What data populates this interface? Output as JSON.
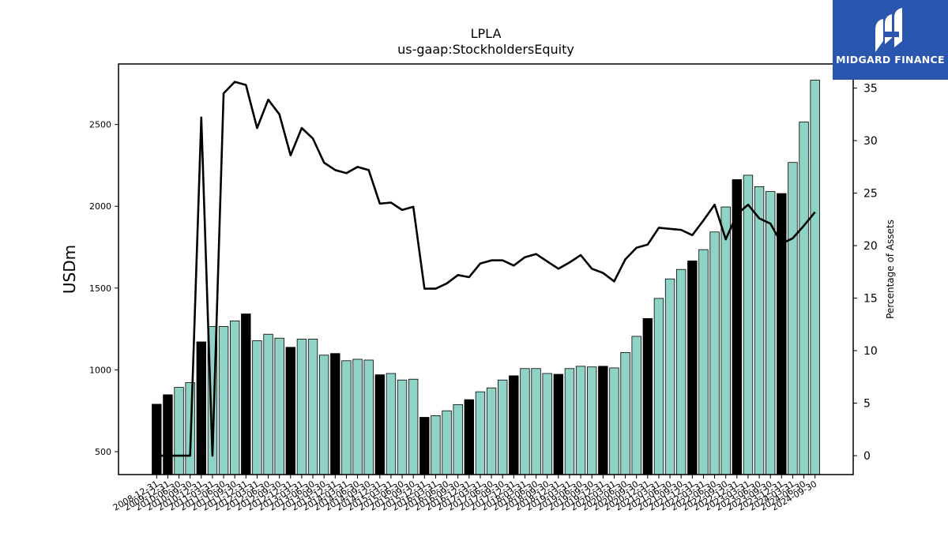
{
  "brand": {
    "logo_text": "MIDGARD FINANCE",
    "logo_color": "#2b56b0"
  },
  "colors": {
    "bar_teal": "#8fd3c6",
    "bar_black": "#000000",
    "line": "#000000"
  },
  "chart_data": {
    "type": "bar",
    "title": "LPLA",
    "subtitle": "us-gaap:StockholdersEquity",
    "ylabel": "USDm",
    "y2label": "Percentage of Assets",
    "ylim": [
      360,
      2870
    ],
    "y2lim": [
      -1.8,
      37.3
    ],
    "yticks": [
      500,
      1000,
      1500,
      2000,
      2500
    ],
    "y2ticks": [
      0,
      5,
      10,
      15,
      20,
      25,
      30,
      35
    ],
    "x_tick_labels": [
      "2008-12-31",
      "2009-12-31",
      "2010-06-30",
      "2010-09-30",
      "2010-12-31",
      "2011-03-31",
      "2011-06-30",
      "2011-09-30",
      "2011-12-31",
      "2012-03-31",
      "2012-06-30",
      "2012-09-30",
      "2012-12-31",
      "2013-03-31",
      "2013-06-30",
      "2013-09-30",
      "2013-12-31",
      "2014-03-31",
      "2014-06-30",
      "2014-09-30",
      "2014-12-31",
      "2015-03-31",
      "2015-06-30",
      "2015-09-30",
      "2015-12-31",
      "2016-03-31",
      "2016-06-30",
      "2016-09-30",
      "2016-12-31",
      "2017-03-31",
      "2017-06-30",
      "2017-09-30",
      "2017-12-31",
      "2018-03-31",
      "2018-06-30",
      "2018-09-30",
      "2018-12-31",
      "2019-03-31",
      "2019-06-30",
      "2019-09-30",
      "2019-12-31",
      "2020-03-31",
      "2020-06-30",
      "2020-09-30",
      "2020-12-31",
      "2021-03-31",
      "2021-06-30",
      "2021-09-30",
      "2021-12-31",
      "2022-03-31",
      "2022-06-30",
      "2022-09-30",
      "2022-12-31",
      "2023-03-31",
      "2023-06-30",
      "2023-09-30",
      "2023-12-31",
      "2024-03-31",
      "2024-06-30",
      "2024-09-30"
    ],
    "series": [
      {
        "values": [
          790,
          848,
          893,
          922,
          1171,
          1265,
          1265,
          1299,
          1342,
          1178,
          1218,
          1194,
          1138,
          1188,
          1188,
          1090,
          1100,
          1056,
          1065,
          1060,
          970,
          978,
          938,
          943,
          710,
          720,
          750,
          788,
          818,
          866,
          890,
          938,
          964,
          1008,
          1008,
          978,
          973,
          1008,
          1022,
          1018,
          1022,
          1012,
          1106,
          1205,
          1314,
          1437,
          1556,
          1614,
          1666,
          1735,
          1843,
          1996,
          2163,
          2190,
          2120,
          2090,
          2078,
          2268,
          2515,
          2771
        ],
        "highlight": [
          true,
          true,
          false,
          false,
          true,
          false,
          false,
          false,
          true,
          false,
          false,
          false,
          true,
          false,
          false,
          false,
          true,
          false,
          false,
          false,
          true,
          false,
          false,
          false,
          true,
          false,
          false,
          false,
          true,
          false,
          false,
          false,
          true,
          false,
          false,
          false,
          true,
          false,
          false,
          false,
          true,
          false,
          false,
          false,
          true,
          false,
          false,
          false,
          true,
          false,
          false,
          false,
          true,
          false,
          false,
          false,
          true,
          false,
          false,
          false
        ]
      },
      {
        "type": "line",
        "axis": "right",
        "values": [
          0,
          0,
          0,
          0,
          32.2,
          0,
          34.5,
          35.6,
          35.3,
          31.2,
          33.9,
          32.5,
          28.6,
          31.2,
          30.2,
          27.9,
          27.2,
          26.9,
          27.5,
          27.2,
          24.0,
          24.1,
          23.4,
          23.7,
          15.9,
          15.9,
          16.4,
          17.2,
          17.0,
          18.3,
          18.6,
          18.6,
          18.1,
          18.9,
          19.2,
          18.5,
          17.8,
          18.4,
          19.1,
          17.8,
          17.4,
          16.6,
          18.7,
          19.8,
          20.1,
          21.7,
          21.6,
          21.5,
          21.0,
          22.4,
          23.9,
          20.6,
          23.0,
          23.9,
          22.6,
          22.1,
          20.2,
          20.7,
          21.9,
          23.2
        ]
      }
    ]
  }
}
